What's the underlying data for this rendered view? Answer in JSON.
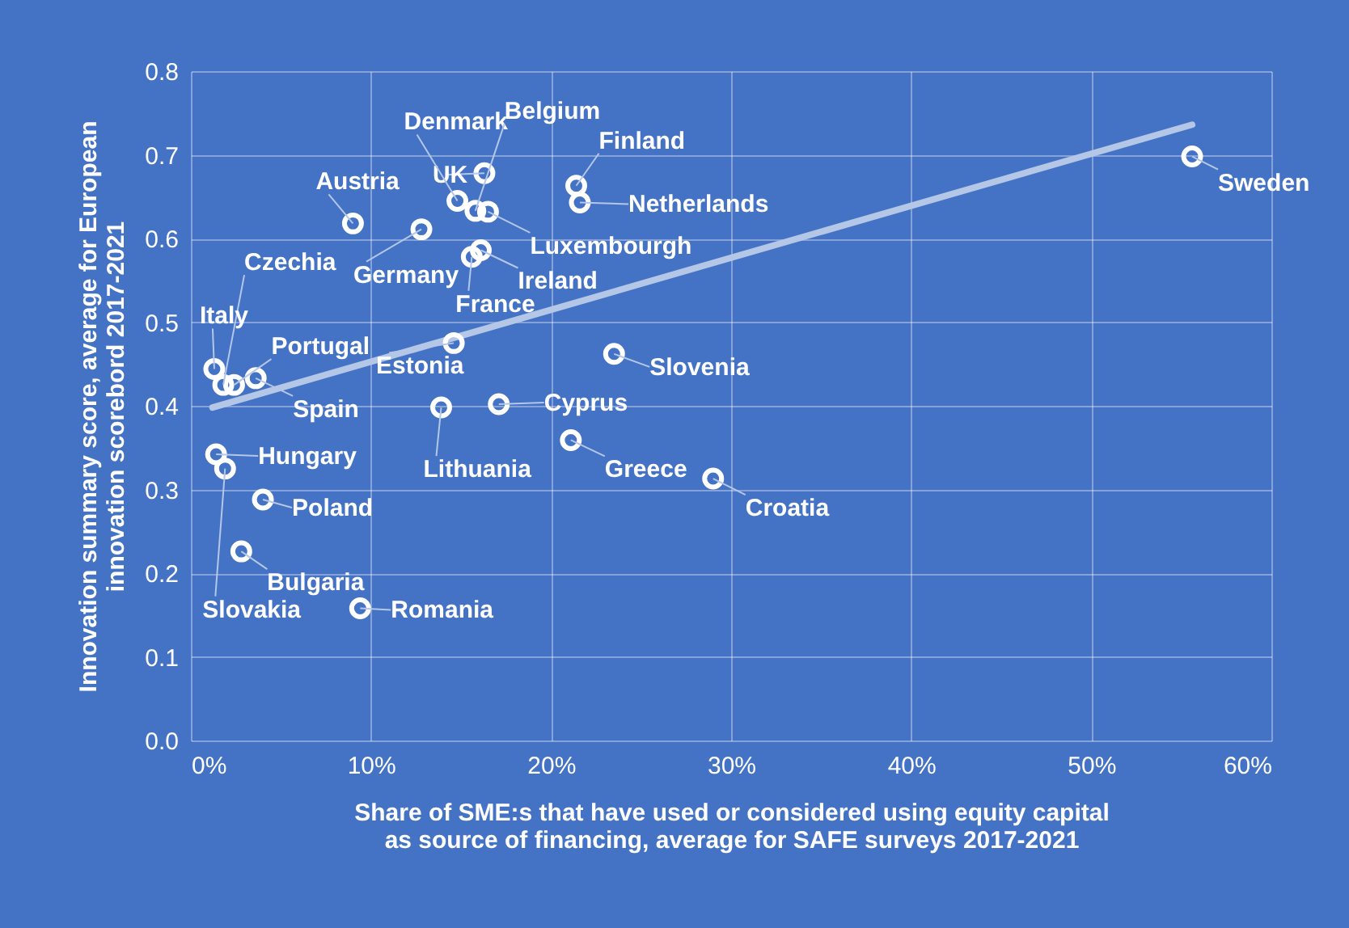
{
  "chart_data": {
    "type": "scatter",
    "xlabel": "Share of SME:s that have used or considered using equity capital as source of financing, average for SAFE surveys 2017-2021",
    "ylabel": "Innovation summary score, average for European innovation scorebord 2017-2021",
    "xlim": [
      0,
      60
    ],
    "xticks": [
      {
        "value": 0,
        "label": "0%"
      },
      {
        "value": 10,
        "label": "10%"
      },
      {
        "value": 20,
        "label": "20%"
      },
      {
        "value": 30,
        "label": "30%"
      },
      {
        "value": 40,
        "label": "40%"
      },
      {
        "value": 50,
        "label": "50%"
      },
      {
        "value": 60,
        "label": "60%"
      }
    ],
    "ylim": [
      0,
      0.8
    ],
    "yticks": [
      {
        "value": 0,
        "label": "0.0"
      },
      0.1,
      0.2,
      0.3,
      0.4,
      0.5,
      0.6,
      0.7,
      0.8
    ],
    "grid": true,
    "series": [
      {
        "marker": "circle",
        "color": "#ffffff",
        "x": [
          55.6,
          21.4,
          21.6,
          16.3,
          14.8,
          15.8,
          16.5,
          9.0,
          12.8,
          16.1,
          15.6,
          1.8,
          1.3,
          2.4,
          3.6,
          14.6,
          23.5,
          17.1,
          13.9,
          21.1,
          29.0,
          1.4,
          1.9,
          4.0,
          2.8,
          9.4
        ],
        "values": [
          0.698,
          0.663,
          0.643,
          0.678,
          0.645,
          0.633,
          0.632,
          0.618,
          0.611,
          0.586,
          0.578,
          0.425,
          0.444,
          0.425,
          0.433,
          0.475,
          0.462,
          0.402,
          0.398,
          0.359,
          0.313,
          0.342,
          0.325,
          0.288,
          0.226,
          0.158
        ]
      },
      {
        "type": "line",
        "marker": "none",
        "line_style": "solid",
        "color": "#b4c7e7",
        "x": [
          1.2,
          55.6
        ],
        "values": [
          0.398,
          0.736
        ]
      }
    ],
    "annotations": [
      {
        "text": "Sweden",
        "x": 55.6,
        "y": 0.698
      },
      {
        "text": "Finland",
        "x": 21.4,
        "y": 0.663
      },
      {
        "text": "Netherlands",
        "x": 21.6,
        "y": 0.643
      },
      {
        "text": "UK",
        "x": 16.3,
        "y": 0.678
      },
      {
        "text": "Denmark",
        "x": 14.8,
        "y": 0.645
      },
      {
        "text": "Belgium",
        "x": 15.8,
        "y": 0.633
      },
      {
        "text": "Luxembourgh",
        "x": 16.5,
        "y": 0.632
      },
      {
        "text": "Austria",
        "x": 9.0,
        "y": 0.618
      },
      {
        "text": "Germany",
        "x": 12.8,
        "y": 0.611
      },
      {
        "text": "Ireland",
        "x": 16.1,
        "y": 0.586
      },
      {
        "text": "France",
        "x": 15.6,
        "y": 0.578
      },
      {
        "text": "Czechia",
        "x": 1.8,
        "y": 0.425
      },
      {
        "text": "Italy",
        "x": 1.3,
        "y": 0.444
      },
      {
        "text": "Portugal",
        "x": 2.4,
        "y": 0.425
      },
      {
        "text": "Spain",
        "x": 3.6,
        "y": 0.433
      },
      {
        "text": "Estonia",
        "x": 14.6,
        "y": 0.475
      },
      {
        "text": "Slovenia",
        "x": 23.5,
        "y": 0.462
      },
      {
        "text": "Cyprus",
        "x": 17.1,
        "y": 0.402
      },
      {
        "text": "Lithuania",
        "x": 13.9,
        "y": 0.398
      },
      {
        "text": "Greece",
        "x": 21.1,
        "y": 0.359
      },
      {
        "text": "Croatia",
        "x": 29.0,
        "y": 0.313
      },
      {
        "text": "Hungary",
        "x": 1.4,
        "y": 0.342
      },
      {
        "text": "Slovakia",
        "x": 1.9,
        "y": 0.325
      },
      {
        "text": "Poland",
        "x": 4.0,
        "y": 0.288
      },
      {
        "text": "Bulgaria",
        "x": 2.8,
        "y": 0.226
      },
      {
        "text": "Romania",
        "x": 9.4,
        "y": 0.158
      }
    ]
  }
}
